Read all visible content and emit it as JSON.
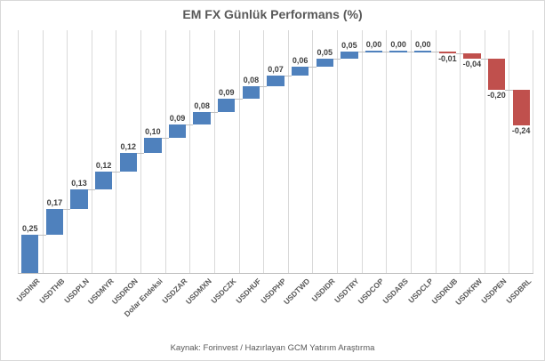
{
  "title": "EM FX Günlük Performans (%)",
  "source": "Kaynak: Forinvest / Hazırlayan GCM Yatırım Araştırma",
  "chart_data": {
    "type": "bar",
    "subtype": "waterfall",
    "title": "EM FX Günlük Performans (%)",
    "categories": [
      "USDINR",
      "USDTHB",
      "USDPLN",
      "USDMYR",
      "USDRON",
      "Dolar Endeksi",
      "USDZAR",
      "USDMXN",
      "USDCZK",
      "USDHUF",
      "USDPHP",
      "USDTWD",
      "USDIDR",
      "USDTRY",
      "USDCOP",
      "USDARS",
      "USDCLP",
      "USDRUB",
      "USDKRW",
      "USDPEN",
      "USDBRL"
    ],
    "values": [
      0.25,
      0.17,
      0.13,
      0.12,
      0.12,
      0.1,
      0.09,
      0.08,
      0.09,
      0.08,
      0.07,
      0.06,
      0.05,
      0.05,
      0.0,
      0.0,
      0.0,
      -0.01,
      -0.04,
      -0.2,
      -0.24
    ],
    "value_labels": [
      "0,25",
      "0,17",
      "0,13",
      "0,12",
      "0,12",
      "0,10",
      "0,09",
      "0,08",
      "0,09",
      "0,08",
      "0,07",
      "0,06",
      "0,05",
      "0,05",
      "0,00",
      "0,00",
      "0,00",
      "-0,01",
      "-0,04",
      "-0,20",
      "-0,24"
    ],
    "xlabel": "",
    "ylabel": "",
    "ylim": [
      0,
      1.6
    ],
    "grid": "vertical-only",
    "legend": "none",
    "colors": {
      "increase": "#4f81bd",
      "decrease": "#c0504d",
      "connector": "#bfbfbf",
      "gridline": "#d9d9d9",
      "axis_line": "#bfbfbf",
      "value_text": "#404040",
      "axis_text": "#595959",
      "title_text": "#595959"
    }
  }
}
